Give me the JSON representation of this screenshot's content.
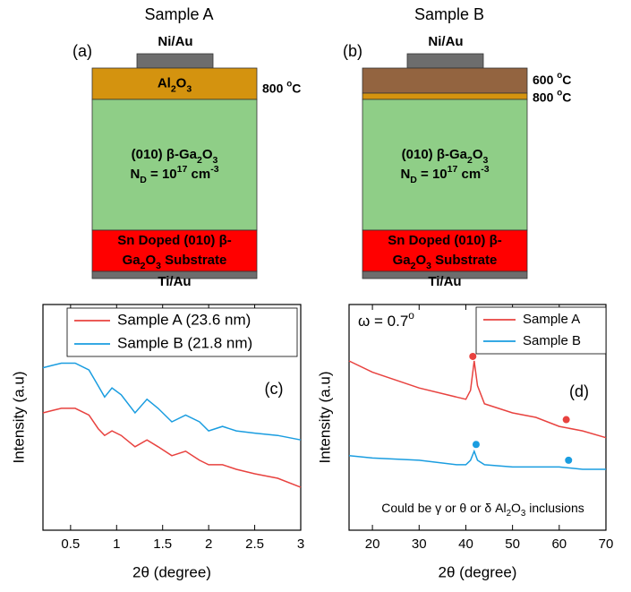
{
  "diagrams": [
    {
      "title": "Sample A",
      "panel": "(a)",
      "top_contact": "Ni/Au",
      "bottom_contact": "Ti/Au",
      "layers": [
        {
          "color": "#d4930f",
          "label": [
            [
              "Al",
              {
                "text": "2",
                "style": "sub"
              },
              "O",
              {
                "text": "3",
                "style": "sub"
              }
            ]
          ],
          "temp": [
            "800 ",
            {
              "text": "o",
              "style": "sup"
            },
            "C"
          ]
        },
        {
          "color": "#8fce87",
          "label": [
            [
              "(010) β-Ga",
              {
                "text": "2",
                "style": "sub"
              },
              "O",
              {
                "text": "3",
                "style": "sub"
              }
            ],
            [
              "N",
              {
                "text": "D",
                "style": "sub"
              },
              " = 10",
              {
                "text": "17",
                "style": "sup"
              },
              " cm",
              {
                "text": "-3",
                "style": "sup"
              }
            ]
          ]
        },
        {
          "color": "#ff0000",
          "label": [
            [
              "Sn Doped (010) β-"
            ],
            [
              "Ga",
              {
                "text": "2",
                "style": "sub"
              },
              "O",
              {
                "text": "3",
                "style": "sub"
              },
              " Substrate"
            ]
          ]
        }
      ]
    },
    {
      "title": "Sample B",
      "panel": "(b)",
      "top_contact": "Ni/Au",
      "bottom_contact": "Ti/Au",
      "layers": [
        {
          "color": "#936440",
          "temp": [
            "600 ",
            {
              "text": "o",
              "style": "sup"
            },
            "C"
          ]
        },
        {
          "color": "#d4930f",
          "temp": [
            "800 ",
            {
              "text": "o",
              "style": "sup"
            },
            "C"
          ]
        },
        {
          "color": "#8fce87",
          "label": [
            [
              "(010) β-Ga",
              {
                "text": "2",
                "style": "sub"
              },
              "O",
              {
                "text": "3",
                "style": "sub"
              }
            ],
            [
              "N",
              {
                "text": "D",
                "style": "sub"
              },
              " = 10",
              {
                "text": "17",
                "style": "sup"
              },
              " cm",
              {
                "text": "-3",
                "style": "sup"
              }
            ]
          ]
        },
        {
          "color": "#ff0000",
          "label": [
            [
              "Sn Doped (010) β-"
            ],
            [
              "Ga",
              {
                "text": "2",
                "style": "sub"
              },
              "O",
              {
                "text": "3",
                "style": "sub"
              },
              " Substrate"
            ]
          ]
        }
      ]
    }
  ],
  "chart_data": [
    {
      "type": "line",
      "panel": "(c)",
      "xlabel": "2θ (degree)",
      "ylabel": "Intensity (a.u)",
      "x": [
        0.2,
        0.3,
        0.4,
        0.55,
        0.7,
        0.8,
        0.87,
        0.95,
        1.05,
        1.2,
        1.33,
        1.45,
        1.6,
        1.75,
        1.9,
        2.0,
        2.15,
        2.3,
        2.5,
        2.75,
        3.0
      ],
      "xlim": [
        0.2,
        3
      ],
      "xticks": [
        0.5,
        1,
        1.5,
        2,
        2.5,
        3
      ],
      "ylim": [
        0,
        100
      ],
      "series": [
        {
          "name": "Sample A (23.6 nm)",
          "color": "#e8423f",
          "values": [
            52,
            53,
            54,
            54,
            51,
            45,
            42,
            44,
            42,
            37,
            40,
            37,
            33,
            35,
            31,
            29,
            29,
            27,
            25,
            23,
            19
          ]
        },
        {
          "name": "Sample B (21.8 nm)",
          "color": "#1a9de0",
          "values": [
            72,
            73,
            74,
            74,
            71,
            64,
            59,
            63,
            60,
            52,
            58,
            54,
            48,
            51,
            48,
            44,
            46,
            44,
            43,
            42,
            40
          ]
        }
      ]
    },
    {
      "type": "line",
      "panel": "(d)",
      "xlabel": "2θ (degree)",
      "ylabel": "Intensity (a.u)",
      "annotations": [
        [
          "ω = 0.7",
          {
            "text": "o",
            "style": "sup"
          }
        ],
        [
          "Could be γ or θ or δ Al",
          {
            "text": "2",
            "style": "sub"
          },
          "O",
          {
            "text": "3",
            "style": "sub"
          },
          " inclusions"
        ]
      ],
      "x": [
        15,
        20,
        30,
        38,
        40,
        41,
        41.8,
        42.5,
        44,
        50,
        55,
        60,
        65,
        70
      ],
      "xlim": [
        15,
        70
      ],
      "xticks": [
        20,
        30,
        40,
        50,
        60,
        70
      ],
      "ylim": [
        0,
        100
      ],
      "series": [
        {
          "name": "Sample A",
          "color": "#e8423f",
          "values": [
            75,
            70,
            63,
            59,
            58,
            62,
            75,
            64,
            56,
            52,
            50,
            46,
            44,
            41
          ],
          "peaks": {
            "x": [
              41.5,
              61.5
            ],
            "y": [
              77,
              49
            ]
          }
        },
        {
          "name": "Sample B",
          "color": "#1a9de0",
          "values": [
            33,
            32,
            31,
            29,
            29,
            31,
            35,
            31,
            29,
            28,
            28,
            28,
            27,
            27
          ],
          "peaks": {
            "x": [
              42.2,
              62
            ],
            "y": [
              38,
              31
            ]
          }
        }
      ]
    }
  ]
}
